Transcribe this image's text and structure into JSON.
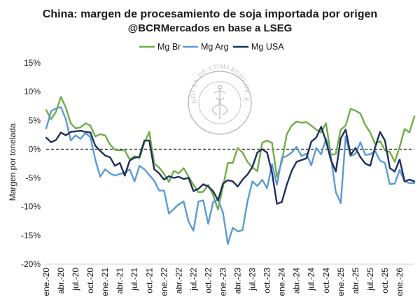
{
  "chart_data": {
    "type": "line",
    "title": "China: margen de procesamiento de soja importada por origen",
    "subtitle": "@BCRMercados en base a LSEG",
    "xlabel": "",
    "ylabel": "Margen por tonelada",
    "ylim": [
      -20,
      15
    ],
    "y_ticks": [
      15,
      10,
      5,
      0,
      -5,
      -10,
      -15,
      -20
    ],
    "y_tick_labels": [
      "15%",
      "10%",
      "5%",
      "0%",
      "-5%",
      "-10%",
      "-15%",
      "-20%"
    ],
    "x_start_index": 0,
    "x_end_index": 75,
    "x_ticks": [
      {
        "index": 0,
        "label": "ene.-20"
      },
      {
        "index": 3,
        "label": "abr.-20"
      },
      {
        "index": 6,
        "label": "jul.-20"
      },
      {
        "index": 9,
        "label": "oct.-20"
      },
      {
        "index": 12,
        "label": "ene.-21"
      },
      {
        "index": 15,
        "label": "abr.-21"
      },
      {
        "index": 18,
        "label": "jul.-21"
      },
      {
        "index": 21,
        "label": "oct.-21"
      },
      {
        "index": 24,
        "label": "ene.-22"
      },
      {
        "index": 27,
        "label": "abr.-22"
      },
      {
        "index": 30,
        "label": "jul.-22"
      },
      {
        "index": 33,
        "label": "oct.-22"
      },
      {
        "index": 36,
        "label": "ene.-23"
      },
      {
        "index": 39,
        "label": "abr.-23"
      },
      {
        "index": 42,
        "label": "jul.-23"
      },
      {
        "index": 45,
        "label": "oct.-23"
      },
      {
        "index": 48,
        "label": "ene.-24"
      },
      {
        "index": 51,
        "label": "abr.-24"
      },
      {
        "index": 54,
        "label": "jul.-24"
      },
      {
        "index": 57,
        "label": "oct.-24"
      },
      {
        "index": 60,
        "label": "ene.-25"
      },
      {
        "index": 63,
        "label": "abr.-25"
      },
      {
        "index": 66,
        "label": "jul.-25"
      },
      {
        "index": 69,
        "label": "oct.-25"
      },
      {
        "index": 72,
        "label": "ene.-26"
      }
    ],
    "zero_line": {
      "style": "dashed",
      "color": "#000000"
    },
    "legend_position": "top-center",
    "series": [
      {
        "name": "Mg Br",
        "color": "#70ad47",
        "values": [
          6.8,
          5.2,
          6.5,
          9.1,
          7.2,
          4.5,
          3.6,
          3.8,
          4.5,
          4.1,
          2.2,
          2.6,
          2.4,
          0.8,
          -0.1,
          -0.2,
          -0.2,
          -1.8,
          -1.2,
          -1.6,
          1.1,
          3.0,
          -2.5,
          -3.2,
          -4.3,
          -5.7,
          -3.8,
          -4.2,
          -3.3,
          -4.8,
          -6.2,
          -7.5,
          -7.4,
          -6.2,
          -8.0,
          -10.5,
          -6.6,
          -2.4,
          -2.4,
          0.2,
          -0.6,
          -2.2,
          -3.2,
          -3.8,
          1.1,
          1.5,
          1.1,
          -4.8,
          -2.2,
          2.6,
          4.1,
          4.8,
          4.6,
          4.7,
          4.1,
          3.4,
          2.9,
          4.5,
          -1.0,
          -0.8,
          3.4,
          4.1,
          7.0,
          6.7,
          6.2,
          4.2,
          2.9,
          0.9,
          1.4,
          -0.2,
          -0.5,
          -2.2,
          0.4,
          3.5,
          2.9,
          5.7
        ]
      },
      {
        "name": "Mg Arg",
        "color": "#5b9bd5",
        "values": [
          3.6,
          6.6,
          7.1,
          7.3,
          5.2,
          1.5,
          2.4,
          1.8,
          2.8,
          2.1,
          -1.8,
          -4.8,
          -3.5,
          -4.2,
          -4.6,
          -4.3,
          -4.1,
          -3.5,
          -5.6,
          -2.9,
          -3.5,
          -4.5,
          -5.5,
          -7.2,
          -7.2,
          -11.2,
          -10.4,
          -9.6,
          -9.1,
          -12.6,
          -14.2,
          -9.1,
          -8.9,
          -13.0,
          -9.2,
          -8.8,
          -11.0,
          -16.5,
          -13.7,
          -14.3,
          -14.1,
          -9.1,
          -5.6,
          -6.4,
          -5.3,
          -6.8,
          -2.6,
          -6.2,
          -1.5,
          -1.2,
          -0.6,
          0.4,
          -1.2,
          -0.8,
          -2.8,
          0.2,
          -0.9,
          1.8,
          -1.4,
          -7.5,
          -9.4,
          2.2,
          -1.2,
          -0.8,
          1.2,
          -1.0,
          -0.9,
          -0.3,
          -2.0,
          -2.4,
          -6.1,
          -6.0,
          -3.6,
          -5.6,
          -5.9,
          -5.9
        ]
      },
      {
        "name": "Mg USA",
        "color": "#1f2f5c",
        "values": [
          2.0,
          1.2,
          1.6,
          2.9,
          2.4,
          3.0,
          3.1,
          3.2,
          3.0,
          2.9,
          0.6,
          -0.3,
          -1.1,
          -1.4,
          -2.9,
          -2.4,
          -4.6,
          -2.0,
          -1.5,
          -1.3,
          1.5,
          1.5,
          -3.5,
          -4.2,
          -5.3,
          -4.7,
          -5.0,
          -4.8,
          -5.2,
          -5.0,
          -7.3,
          -6.9,
          -6.1,
          -6.5,
          -7.3,
          -8.9,
          -6.0,
          -5.4,
          -5.6,
          -6.5,
          -5.3,
          -4.4,
          -3.1,
          -0.6,
          0.0,
          -0.6,
          -4.1,
          -9.5,
          -9.2,
          -6.2,
          -3.8,
          -2.2,
          -1.9,
          -1.6,
          1.3,
          2.0,
          3.9,
          1.4,
          -1.9,
          -3.9,
          1.9,
          3.4,
          -1.0,
          0.2,
          -1.4,
          -2.5,
          -2.9,
          0.3,
          3.0,
          1.5,
          -3.3,
          -3.9,
          -1.8,
          -5.6,
          -5.3,
          -5.6
        ]
      }
    ]
  },
  "watermark": {
    "top_text": "BOLSA DE COMERCIO DE ROSARIO",
    "left_text": "BOLSA DE",
    "right_text": "ROSARIO",
    "icon": "caduceus-icon"
  }
}
